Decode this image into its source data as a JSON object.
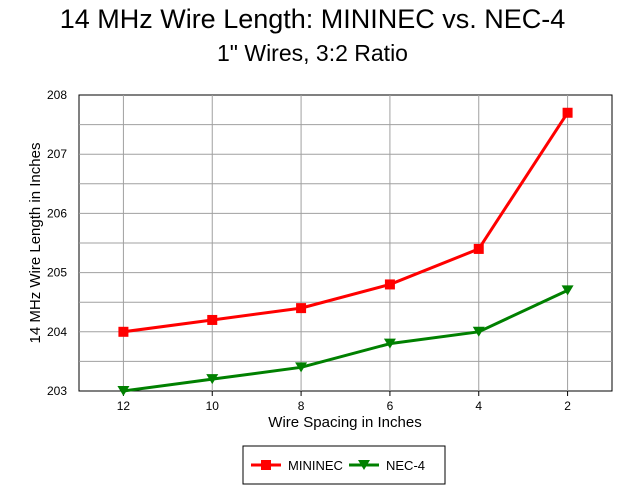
{
  "chart_data": {
    "type": "line",
    "title": "14 MHz Wire Length:  MININEC vs. NEC-4",
    "subtitle": "1\" Wires, 3:2 Ratio",
    "xlabel": "Wire Spacing in Inches",
    "ylabel": "14 MHz Wire Length in Inches",
    "x": [
      12,
      10,
      8,
      6,
      4,
      2
    ],
    "x_ticks": [
      "12",
      "10",
      "8",
      "6",
      "4",
      "2"
    ],
    "x_reversed": true,
    "ylim": [
      203,
      208
    ],
    "y_ticks": [
      "203",
      "204",
      "205",
      "206",
      "207",
      "208"
    ],
    "grid": true,
    "legend_position": "bottom-center",
    "series": [
      {
        "name": "MININEC",
        "values": [
          204.0,
          204.2,
          204.4,
          204.8,
          205.4,
          207.7
        ],
        "color": "#ff0000",
        "marker": "square"
      },
      {
        "name": "NEC-4",
        "values": [
          203.0,
          203.2,
          203.4,
          203.8,
          204.0,
          204.7
        ],
        "color": "#008000",
        "marker": "triangle-down"
      }
    ]
  }
}
